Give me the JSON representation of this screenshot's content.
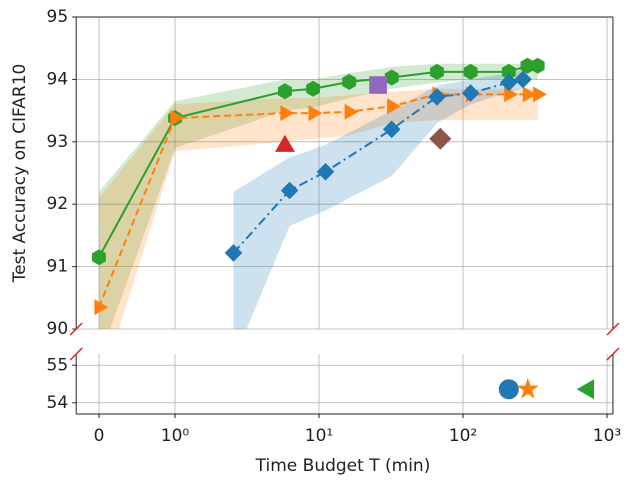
{
  "chart_data": {
    "type": "line",
    "xlabel": "Time Budget T (min)",
    "ylabel": "Test Accuracy on CIFAR10",
    "xscale": "symlog",
    "xlim": [
      -0.3,
      1100
    ],
    "xticks": [
      0,
      {
        "value": 1,
        "label": "10⁰"
      },
      {
        "value": 10,
        "label": "10¹"
      },
      {
        "value": 100,
        "label": "10²"
      },
      {
        "value": 1000,
        "label": "10³"
      }
    ],
    "grid": true,
    "panels": [
      {
        "ylim": [
          90,
          95
        ],
        "yticks": [
          90,
          91,
          92,
          93,
          94,
          95
        ],
        "series": [
          {
            "color": "#2ca02c",
            "marker": "hexagon",
            "linestyle": "solid",
            "x": [
              0,
              1,
              5.8,
              9.1,
              16.2,
              32,
              66,
              113,
              208,
              280,
              330
            ],
            "values": [
              91.15,
              93.38,
              93.81,
              93.85,
              93.96,
              94.03,
              94.12,
              94.12,
              94.12,
              94.22,
              94.22
            ],
            "band_lower": [
              89.5,
              92.9,
              93.5,
              93.55,
              93.7,
              93.85,
              93.95,
              94.0,
              94.0,
              94.0,
              94.0
            ],
            "band_upper": [
              92.2,
              93.65,
              94.0,
              94.0,
              94.1,
              94.2,
              94.25,
              94.25,
              94.25,
              94.25,
              94.25
            ]
          },
          {
            "color": "#ff7f0e",
            "marker": "triangle-right",
            "linestyle": "dashed",
            "x": [
              0,
              1,
              5.8,
              9.1,
              16.2,
              32,
              66,
              113,
              208,
              280,
              330
            ],
            "values": [
              90.35,
              93.38,
              93.46,
              93.46,
              93.48,
              93.57,
              93.76,
              93.76,
              93.76,
              93.76,
              93.76
            ],
            "band_lower": [
              89.0,
              92.85,
              93.0,
              93.05,
              93.1,
              93.3,
              93.35,
              93.35,
              93.35,
              93.35,
              93.35
            ],
            "band_upper": [
              92.1,
              93.6,
              93.7,
              93.7,
              93.75,
              93.8,
              93.85,
              93.85,
              93.85,
              93.85,
              93.85
            ]
          },
          {
            "color": "#1f77b4",
            "marker": "diamond",
            "linestyle": "dashdot",
            "x": [
              2.55,
              6.25,
              11.1,
              32,
              66,
              113,
              208,
              261
            ],
            "values": [
              91.22,
              92.22,
              92.52,
              93.2,
              93.72,
              93.78,
              93.95,
              94.0
            ],
            "band_lower": [
              89.5,
              91.65,
              91.9,
              92.45,
              93.3,
              93.6,
              93.8,
              93.85
            ],
            "band_upper": [
              92.2,
              92.75,
              92.95,
              93.5,
              93.9,
              94.0,
              94.1,
              94.15
            ]
          }
        ],
        "points": [
          {
            "x": 5.8,
            "y": 92.93,
            "color": "#d62728",
            "marker": "triangle-up"
          },
          {
            "x": 25.7,
            "y": 93.91,
            "color": "#9467bd",
            "marker": "square"
          },
          {
            "x": 69.6,
            "y": 93.05,
            "color": "#8c564b",
            "marker": "diamond"
          }
        ]
      },
      {
        "ylim": [
          53.7,
          55.3
        ],
        "yticks": [
          54,
          55
        ],
        "points": [
          {
            "x": 208,
            "y": 54.36,
            "color": "#1f77b4",
            "marker": "circle"
          },
          {
            "x": 282,
            "y": 54.36,
            "color": "#ff7f0e",
            "marker": "star"
          },
          {
            "x": 741,
            "y": 54.36,
            "color": "#2ca02c",
            "marker": "triangle-left"
          }
        ]
      }
    ]
  }
}
